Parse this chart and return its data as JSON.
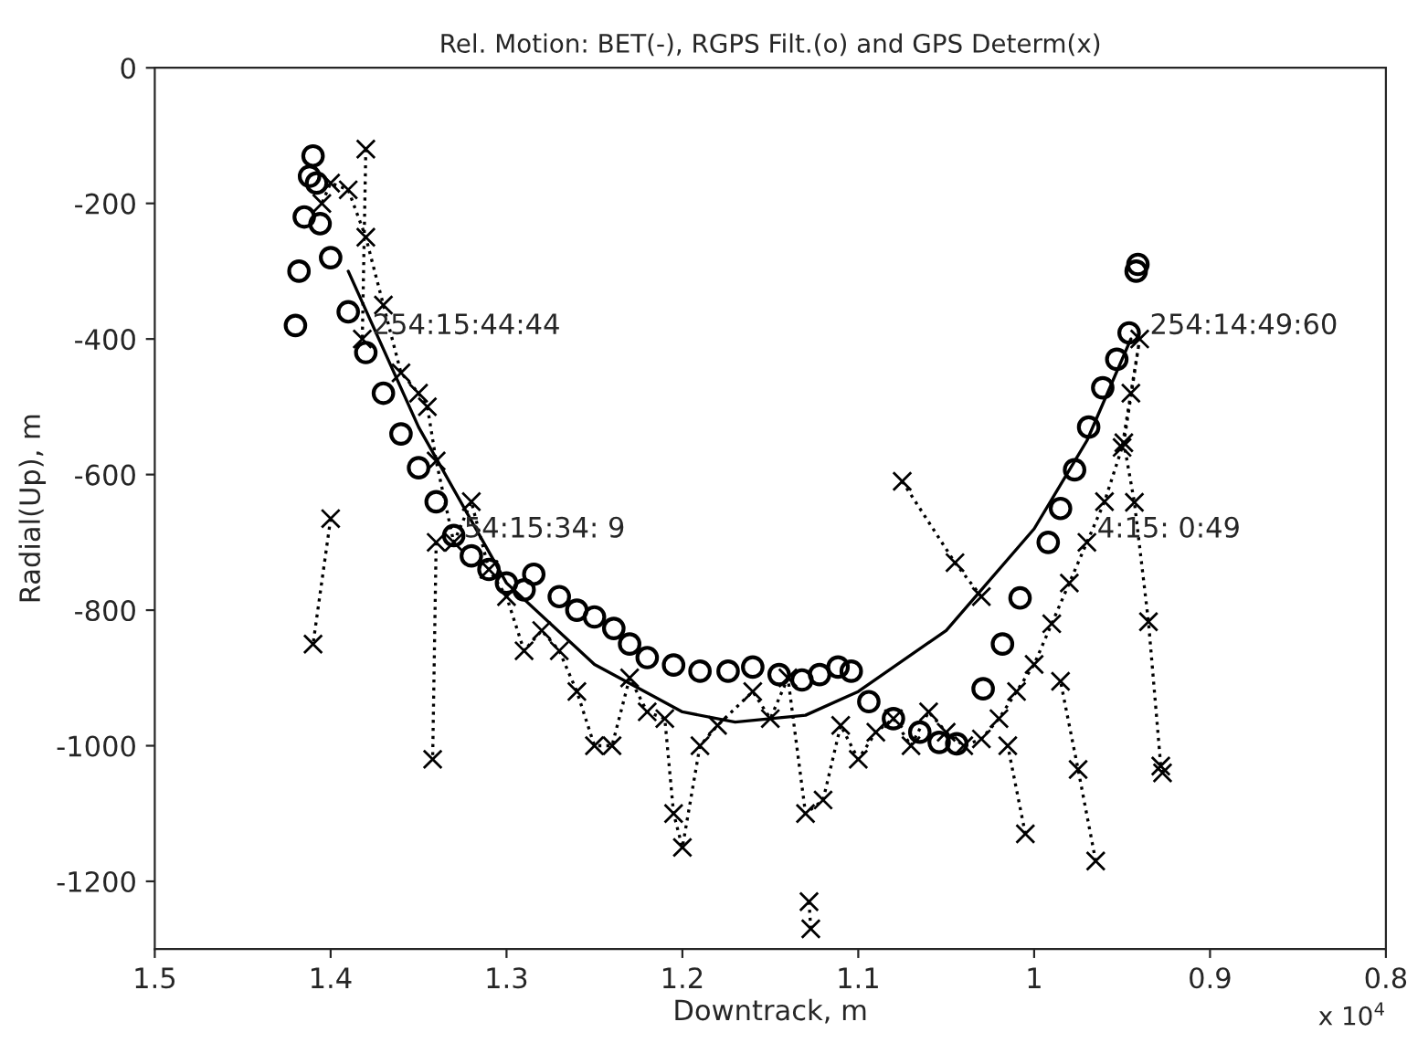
{
  "chart_data": {
    "type": "line",
    "title": "Rel. Motion: BET(-), RGPS Filt.(o) and GPS Determ(x)",
    "xlabel": "Downtrack, m",
    "ylabel": "Radial(Up), m",
    "xlim": [
      1.5,
      0.8
    ],
    "xticks": [
      1.5,
      1.4,
      1.3,
      1.2,
      1.1,
      1,
      0.9,
      0.8
    ],
    "ylim": [
      -1300,
      0
    ],
    "yticks": [
      -1200,
      -1000,
      -800,
      -600,
      -400,
      -200,
      0
    ],
    "grid": false,
    "legend": false,
    "series": [
      {
        "color": "#000000",
        "marker": "none",
        "line_style": "solid",
        "x": [
          1.39,
          1.35,
          1.3,
          1.25,
          1.2,
          1.17,
          1.13,
          1.1,
          1.05,
          1.0,
          0.97,
          0.945
        ],
        "values": [
          -300,
          -530,
          -760,
          -880,
          -950,
          -965,
          -955,
          -920,
          -830,
          -680,
          -550,
          -400
        ]
      },
      {
        "type": "scatter",
        "color": "#000000",
        "marker": "circle",
        "x": [
          1.42,
          1.418,
          1.415,
          1.412,
          1.41,
          1.408,
          1.406,
          1.4,
          1.39,
          1.38,
          1.37,
          1.36,
          1.35,
          1.34,
          1.33,
          1.32,
          1.31,
          1.3,
          1.29,
          1.2845,
          1.27,
          1.26,
          1.25,
          1.239,
          1.23,
          1.22,
          1.205,
          1.19,
          1.174,
          1.16,
          1.145,
          1.132,
          1.122,
          1.1115,
          1.104,
          1.094,
          1.08,
          1.065,
          1.054,
          1.044,
          1.029,
          1.018,
          1.008,
          0.992,
          0.985,
          0.977,
          0.969,
          0.961,
          0.953,
          0.946,
          0.942,
          0.941
        ],
        "values": [
          -380,
          -300,
          -220,
          -160,
          -130,
          -170,
          -230,
          -280,
          -360,
          -420,
          -480,
          -540,
          -590,
          -640,
          -690,
          -720,
          -740,
          -760,
          -770,
          -747,
          -780,
          -800,
          -810,
          -827,
          -850,
          -870,
          -881,
          -890,
          -890,
          -884,
          -895,
          -903,
          -895,
          -884,
          -890,
          -935,
          -960,
          -980,
          -995,
          -997,
          -916,
          -850,
          -782,
          -700,
          -650,
          -593,
          -530,
          -472,
          -430,
          -391,
          -300,
          -290
        ]
      },
      {
        "color": "#000000",
        "marker": "cross",
        "line_style": "dotted",
        "x": [
          0.927,
          0.928,
          0.935,
          0.943,
          0.949,
          0.94,
          0.945,
          0.95,
          0.96,
          0.97,
          0.98,
          0.99,
          1.0,
          1.01,
          1.02,
          1.03,
          1.04,
          1.05,
          1.06,
          1.07,
          1.08,
          1.09,
          1.1,
          1.11,
          1.12,
          1.13,
          1.14,
          1.15,
          1.16,
          1.18,
          1.19,
          1.2,
          1.205,
          1.21,
          1.22,
          1.23,
          1.24,
          1.25,
          1.26,
          1.27,
          1.28,
          1.29,
          1.3,
          1.31,
          1.32,
          1.33,
          1.34,
          1.345,
          1.35,
          1.36,
          1.37,
          1.38,
          1.39,
          1.4,
          1.405,
          null,
          1.075,
          1.045,
          1.03,
          null,
          0.965,
          0.975,
          0.985,
          null,
          1.005,
          1.015,
          null,
          1.128,
          1.127,
          null,
          1.34,
          1.342,
          null,
          1.4,
          1.41,
          null,
          1.38,
          1.382
        ],
        "values": [
          -1040,
          -1030,
          -817,
          -641,
          -553,
          -400,
          -480,
          -560,
          -640,
          -700,
          -760,
          -820,
          -880,
          -920,
          -960,
          -990,
          -1000,
          -980,
          -950,
          -1000,
          -960,
          -980,
          -1020,
          -970,
          -1080,
          -1100,
          -900,
          -960,
          -920,
          -970,
          -1000,
          -1150,
          -1100,
          -960,
          -950,
          -900,
          -1000,
          -1000,
          -920,
          -860,
          -830,
          -860,
          -780,
          -740,
          -640,
          -700,
          -580,
          -500,
          -480,
          -450,
          -350,
          -250,
          -180,
          -170,
          -200,
          null,
          -610,
          -730,
          -780,
          null,
          -1170,
          -1035,
          -905,
          null,
          -1130,
          -1000,
          null,
          -1230,
          -1270,
          null,
          -700,
          -1020,
          null,
          -665,
          -850,
          null,
          -120,
          -400
        ]
      }
    ],
    "annotations": [
      {
        "text": "254:15:44:44",
        "x": 1.382,
        "y": -400
      },
      {
        "text": "254:14:49:60",
        "x": 0.94,
        "y": -400
      },
      {
        "text": "54:15:34: 9",
        "x": 1.33,
        "y": -700
      },
      {
        "text": "4:15: 0:49",
        "x": 0.97,
        "y": -700
      },
      "x 10$^{4}$"
    ]
  }
}
